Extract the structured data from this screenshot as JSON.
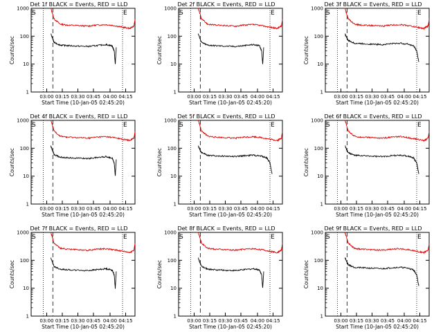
{
  "figure": {
    "background": "#ffffff",
    "series_colors": {
      "events": "#000000",
      "lld": "#dd0000"
    }
  },
  "chart_data": [
    {
      "type": "line",
      "title": "Det 1f BLACK = Events, RED = LLD",
      "xlabel": "Start Time (10-Jan-05 02:45:20)",
      "ylabel": "Counts/sec",
      "ylog": true,
      "ylim": [
        1,
        1000
      ],
      "xticks": [
        "03:00",
        "03:15",
        "03:30",
        "03:45",
        "04:00",
        "04:15"
      ],
      "yticks": [
        "1",
        "10",
        "100",
        "1000"
      ],
      "markers": {
        "start": "S",
        "end": "E"
      },
      "series": [
        {
          "color": "#dd0000",
          "x": [
            0.19,
            0.22,
            0.28,
            0.35,
            0.45,
            0.55,
            0.63,
            0.72,
            0.8,
            0.88,
            0.95,
            0.99,
            1.0
          ],
          "y": [
            1000,
            420,
            270,
            250,
            240,
            230,
            250,
            260,
            240,
            210,
            190,
            230,
            400
          ]
        },
        {
          "color": "#000000",
          "x": [
            0.19,
            0.22,
            0.28,
            0.35,
            0.45,
            0.55,
            0.63,
            0.72,
            0.78,
            0.8,
            0.81,
            0.82
          ],
          "y": [
            120,
            60,
            48,
            46,
            44,
            43,
            46,
            50,
            45,
            30,
            10,
            40
          ]
        }
      ]
    },
    {
      "type": "line",
      "title": "Det 2f BLACK = Events, RED = LLD",
      "xlabel": "Start Time (10-Jan-05 02:45:20)",
      "ylabel": "Counts/sec",
      "ylog": true,
      "ylim": [
        1,
        1000
      ],
      "xticks": [
        "03:00",
        "03:15",
        "03:30",
        "03:45",
        "04:00",
        "04:15"
      ],
      "yticks": [
        "1",
        "10",
        "100",
        "1000"
      ],
      "markers": {
        "start": "S",
        "end": "E"
      },
      "series": [
        {
          "color": "#dd0000",
          "x": [
            0.19,
            0.22,
            0.28,
            0.35,
            0.45,
            0.55,
            0.63,
            0.72,
            0.8,
            0.88,
            0.95,
            0.99,
            1.0
          ],
          "y": [
            1000,
            420,
            270,
            250,
            240,
            230,
            250,
            260,
            240,
            210,
            190,
            230,
            400
          ]
        },
        {
          "color": "#000000",
          "x": [
            0.19,
            0.22,
            0.28,
            0.35,
            0.45,
            0.55,
            0.63,
            0.72,
            0.78,
            0.8,
            0.81,
            0.82
          ],
          "y": [
            120,
            60,
            48,
            46,
            44,
            43,
            46,
            50,
            45,
            30,
            10,
            40
          ]
        }
      ]
    },
    {
      "type": "line",
      "title": "Det 3f BLACK = Events, RED = LLD",
      "xlabel": "Start Time (10-Jan-05 02:45:20)",
      "ylabel": "Counts/sec",
      "ylog": true,
      "ylim": [
        1,
        1000
      ],
      "xticks": [
        "03:00",
        "03:15",
        "03:30",
        "03:45",
        "04:00",
        "04:15"
      ],
      "yticks": [
        "1",
        "10",
        "100",
        "1000"
      ],
      "markers": {
        "start": "S",
        "end": "E"
      },
      "series": [
        {
          "color": "#dd0000",
          "x": [
            0.19,
            0.22,
            0.28,
            0.35,
            0.45,
            0.55,
            0.63,
            0.72,
            0.8,
            0.88,
            0.95,
            0.99,
            1.0
          ],
          "y": [
            1000,
            420,
            270,
            250,
            240,
            230,
            250,
            260,
            240,
            210,
            190,
            230,
            400
          ]
        },
        {
          "color": "#000000",
          "x": [
            0.19,
            0.22,
            0.28,
            0.35,
            0.45,
            0.55,
            0.63,
            0.72,
            0.8,
            0.85,
            0.88,
            0.9
          ],
          "y": [
            120,
            70,
            56,
            54,
            52,
            50,
            54,
            56,
            52,
            45,
            30,
            12
          ]
        }
      ]
    },
    {
      "type": "line",
      "title": "Det 4f BLACK = Events, RED = LLD",
      "xlabel": "Start Time (10-Jan-05 02:45:20)",
      "ylabel": "Counts/sec",
      "ylog": true,
      "ylim": [
        1,
        1000
      ],
      "xticks": [
        "03:00",
        "03:15",
        "03:30",
        "03:45",
        "04:00",
        "04:15"
      ],
      "yticks": [
        "1",
        "10",
        "100",
        "1000"
      ],
      "markers": {
        "start": "S",
        "end": "E"
      },
      "series": [
        {
          "color": "#dd0000",
          "x": [
            0.19,
            0.22,
            0.28,
            0.35,
            0.45,
            0.55,
            0.63,
            0.72,
            0.8,
            0.88,
            0.95,
            0.99,
            1.0
          ],
          "y": [
            1000,
            420,
            270,
            250,
            240,
            230,
            250,
            260,
            240,
            210,
            190,
            230,
            400
          ]
        },
        {
          "color": "#000000",
          "x": [
            0.19,
            0.22,
            0.28,
            0.35,
            0.45,
            0.55,
            0.63,
            0.72,
            0.78,
            0.8,
            0.81,
            0.82
          ],
          "y": [
            120,
            60,
            48,
            46,
            44,
            43,
            46,
            50,
            45,
            30,
            10,
            40
          ]
        }
      ]
    },
    {
      "type": "line",
      "title": "Det 5f BLACK = Events, RED = LLD",
      "xlabel": "Start Time (10-Jan-05 02:45:20)",
      "ylabel": "Counts/sec",
      "ylog": true,
      "ylim": [
        1,
        1000
      ],
      "xticks": [
        "03:00",
        "03:15",
        "03:30",
        "03:45",
        "04:00",
        "04:15"
      ],
      "yticks": [
        "1",
        "10",
        "100",
        "1000"
      ],
      "markers": {
        "start": "S",
        "end": "E"
      },
      "series": [
        {
          "color": "#dd0000",
          "x": [
            0.19,
            0.22,
            0.28,
            0.35,
            0.45,
            0.55,
            0.63,
            0.72,
            0.8,
            0.88,
            0.95,
            0.99,
            1.0
          ],
          "y": [
            1000,
            420,
            270,
            250,
            240,
            230,
            250,
            260,
            240,
            210,
            190,
            230,
            400
          ]
        },
        {
          "color": "#000000",
          "x": [
            0.19,
            0.22,
            0.28,
            0.35,
            0.45,
            0.55,
            0.63,
            0.72,
            0.8,
            0.85,
            0.88,
            0.9
          ],
          "y": [
            120,
            70,
            56,
            54,
            52,
            50,
            54,
            56,
            52,
            45,
            30,
            12
          ]
        }
      ]
    },
    {
      "type": "line",
      "title": "Det 6f BLACK = Events, RED = LLD",
      "xlabel": "Start Time (10-Jan-05 02:45:20)",
      "ylabel": "Counts/sec",
      "ylog": true,
      "ylim": [
        1,
        1000
      ],
      "xticks": [
        "03:00",
        "03:15",
        "03:30",
        "03:45",
        "04:00",
        "04:15"
      ],
      "yticks": [
        "1",
        "10",
        "100",
        "1000"
      ],
      "markers": {
        "start": "S",
        "end": "E"
      },
      "series": [
        {
          "color": "#dd0000",
          "x": [
            0.19,
            0.22,
            0.28,
            0.35,
            0.45,
            0.55,
            0.63,
            0.72,
            0.8,
            0.88,
            0.95,
            0.99,
            1.0
          ],
          "y": [
            1000,
            420,
            270,
            250,
            240,
            230,
            250,
            260,
            240,
            210,
            190,
            230,
            400
          ]
        },
        {
          "color": "#000000",
          "x": [
            0.19,
            0.22,
            0.28,
            0.35,
            0.45,
            0.55,
            0.63,
            0.72,
            0.8,
            0.85,
            0.88,
            0.9
          ],
          "y": [
            120,
            70,
            56,
            54,
            52,
            50,
            54,
            56,
            52,
            45,
            30,
            12
          ]
        }
      ]
    },
    {
      "type": "line",
      "title": "Det 7f BLACK = Events, RED = LLD",
      "xlabel": "Start Time (10-Jan-05 02:45:20)",
      "ylabel": "Counts/sec",
      "ylog": true,
      "ylim": [
        1,
        1000
      ],
      "xticks": [
        "03:00",
        "03:15",
        "03:30",
        "03:45",
        "04:00",
        "04:15"
      ],
      "yticks": [
        "1",
        "10",
        "100",
        "1000"
      ],
      "markers": {
        "start": "S",
        "end": "E"
      },
      "series": [
        {
          "color": "#dd0000",
          "x": [
            0.19,
            0.22,
            0.28,
            0.35,
            0.45,
            0.55,
            0.63,
            0.72,
            0.8,
            0.88,
            0.95,
            0.99,
            1.0
          ],
          "y": [
            1000,
            420,
            270,
            250,
            240,
            230,
            250,
            260,
            240,
            210,
            190,
            230,
            400
          ]
        },
        {
          "color": "#000000",
          "x": [
            0.19,
            0.22,
            0.28,
            0.35,
            0.45,
            0.55,
            0.63,
            0.72,
            0.78,
            0.8,
            0.81,
            0.82
          ],
          "y": [
            120,
            60,
            48,
            46,
            44,
            43,
            46,
            50,
            45,
            30,
            10,
            40
          ]
        }
      ]
    },
    {
      "type": "line",
      "title": "Det 8f BLACK = Events, RED = LLD",
      "xlabel": "Start Time (10-Jan-05 02:45:20)",
      "ylabel": "Counts/sec",
      "ylog": true,
      "ylim": [
        1,
        1000
      ],
      "xticks": [
        "03:00",
        "03:15",
        "03:30",
        "03:45",
        "04:00",
        "04:15"
      ],
      "yticks": [
        "1",
        "10",
        "100",
        "1000"
      ],
      "markers": {
        "start": "S",
        "end": "E"
      },
      "series": [
        {
          "color": "#dd0000",
          "x": [
            0.19,
            0.22,
            0.28,
            0.35,
            0.45,
            0.55,
            0.63,
            0.72,
            0.8,
            0.88,
            0.95,
            0.99,
            1.0
          ],
          "y": [
            1000,
            420,
            270,
            250,
            240,
            230,
            250,
            260,
            240,
            210,
            190,
            230,
            400
          ]
        },
        {
          "color": "#000000",
          "x": [
            0.19,
            0.22,
            0.28,
            0.35,
            0.45,
            0.55,
            0.63,
            0.72,
            0.78,
            0.8,
            0.81,
            0.82
          ],
          "y": [
            120,
            60,
            48,
            46,
            44,
            43,
            46,
            50,
            45,
            30,
            10,
            40
          ]
        }
      ]
    },
    {
      "type": "line",
      "title": "Det 9f BLACK = Events, RED = LLD",
      "xlabel": "Start Time (10-Jan-05 02:45:20)",
      "ylabel": "Counts/sec",
      "ylog": true,
      "ylim": [
        1,
        1000
      ],
      "xticks": [
        "03:00",
        "03:15",
        "03:30",
        "03:45",
        "04:00",
        "04:15"
      ],
      "yticks": [
        "1",
        "10",
        "100",
        "1000"
      ],
      "markers": {
        "start": "S",
        "end": "E"
      },
      "series": [
        {
          "color": "#dd0000",
          "x": [
            0.19,
            0.22,
            0.28,
            0.35,
            0.45,
            0.55,
            0.63,
            0.72,
            0.8,
            0.88,
            0.95,
            0.99,
            1.0
          ],
          "y": [
            1000,
            420,
            270,
            250,
            240,
            230,
            250,
            260,
            240,
            210,
            190,
            230,
            400
          ]
        },
        {
          "color": "#000000",
          "x": [
            0.19,
            0.22,
            0.28,
            0.35,
            0.45,
            0.55,
            0.63,
            0.72,
            0.8,
            0.85,
            0.88,
            0.9
          ],
          "y": [
            120,
            70,
            56,
            54,
            52,
            50,
            54,
            56,
            52,
            45,
            30,
            12
          ]
        }
      ]
    }
  ]
}
